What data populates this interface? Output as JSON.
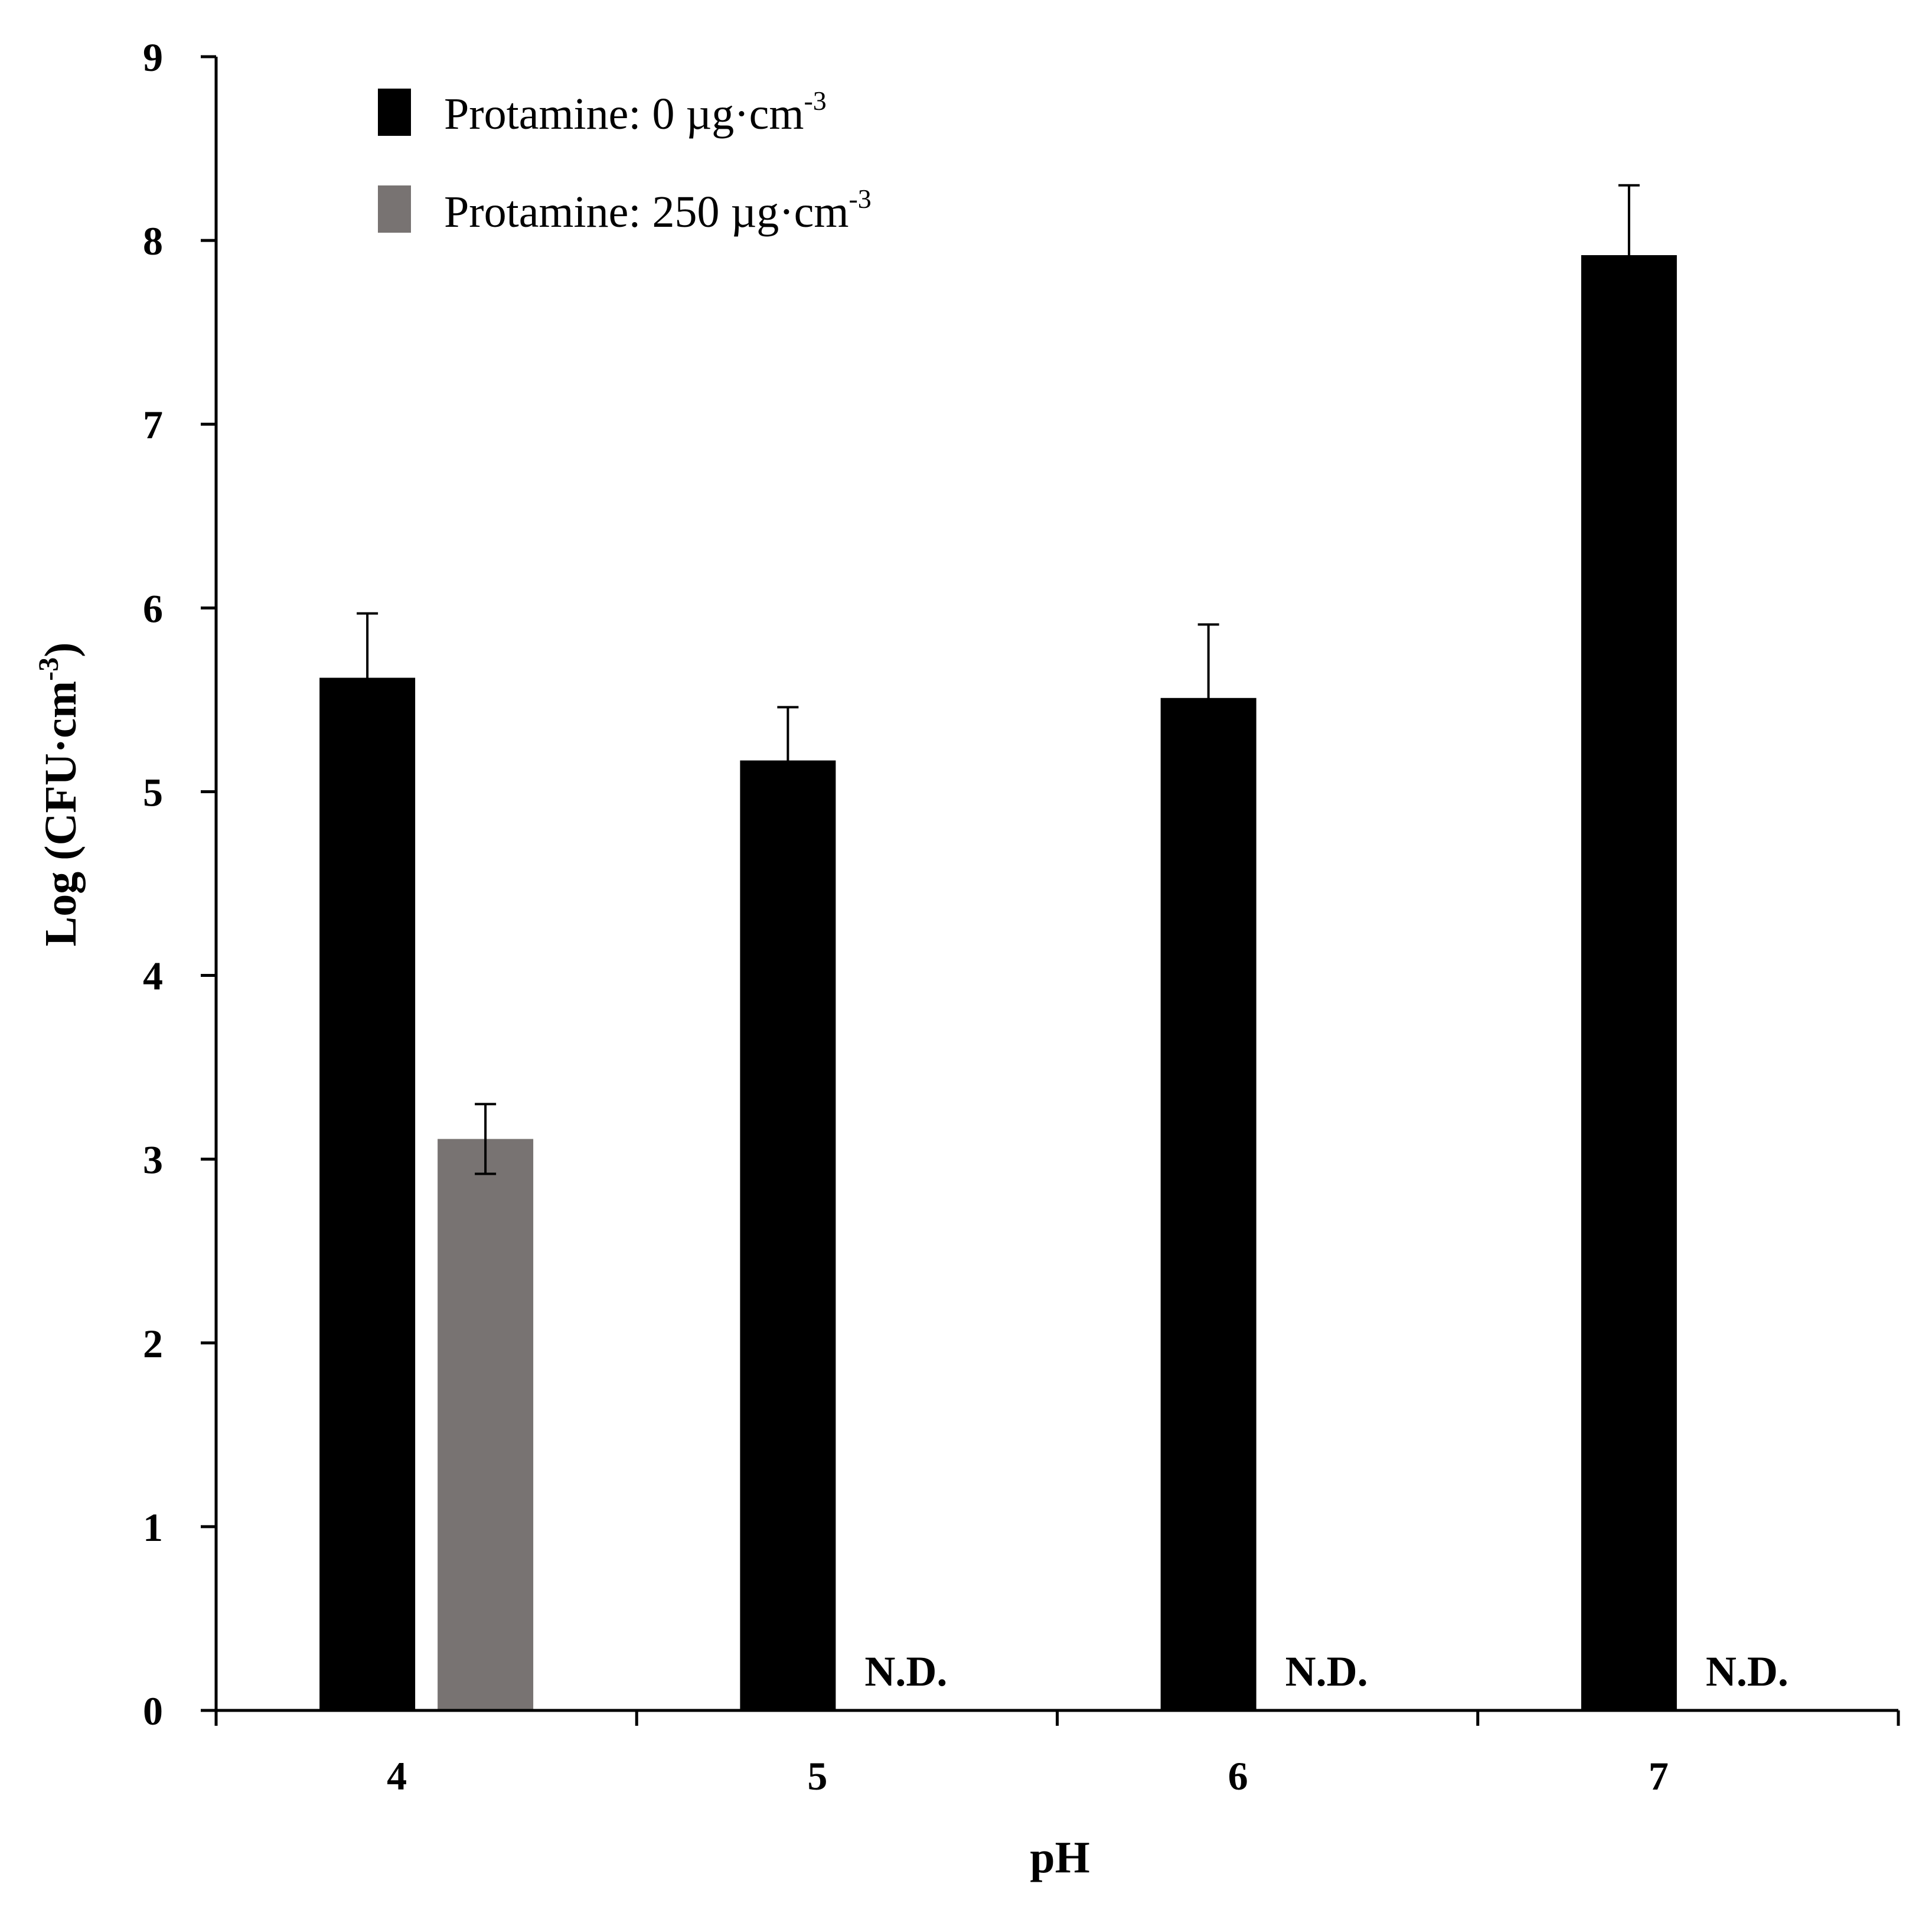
{
  "chart_data": {
    "type": "bar",
    "xlabel": "pH",
    "ylabel": "Log (CFU·cm",
    "ylabel_sup": "-3",
    "ylabel_end": ")",
    "ylim": [
      0,
      9
    ],
    "yticks": [
      "0",
      "1",
      "2",
      "3",
      "4",
      "5",
      "6",
      "7",
      "8",
      "9"
    ],
    "categories": [
      "4",
      "5",
      "6",
      "7"
    ],
    "grid": false,
    "legend_position": "top-left",
    "series": [
      {
        "name": "Protamine: 0 µg·cm",
        "name_sup": "-3",
        "color": "#000000",
        "values": [
          5.62,
          5.17,
          5.51,
          7.92
        ],
        "errors": [
          0.35,
          0.29,
          0.4,
          0.38
        ],
        "labels": [
          null,
          null,
          null,
          null
        ]
      },
      {
        "name": "Protamine: 250 µg·cm",
        "name_sup": "-3",
        "color": "#787372",
        "values": [
          3.11,
          null,
          null,
          null
        ],
        "errors": [
          0.19,
          null,
          null,
          null
        ],
        "labels": [
          null,
          "N.D.",
          "N.D.",
          "N.D."
        ]
      }
    ]
  }
}
